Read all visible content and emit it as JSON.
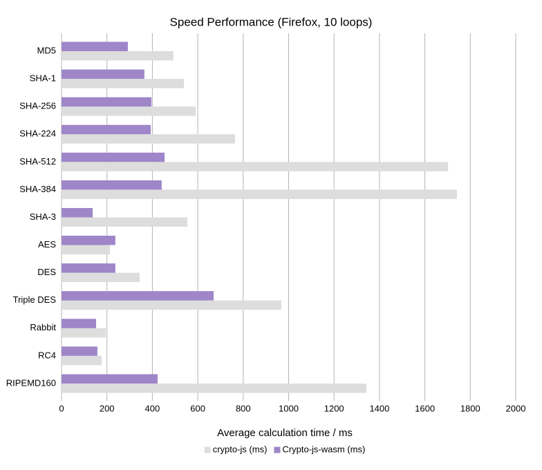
{
  "chart_data": {
    "type": "hbar",
    "title": "Speed Performance (Firefox, 10 loops)",
    "x_label": "Average calculation time / ms",
    "categories": [
      "MD5",
      "SHA-1",
      "SHA-256",
      "SHA-224",
      "SHA-512",
      "SHA-384",
      "SHA-3",
      "AES",
      "DES",
      "Triple DES",
      "Rabbit",
      "RC4",
      "RIPEMD160"
    ],
    "series": [
      {
        "name": "crypto-js (ms)",
        "color": "#dddddd",
        "values": [
          493,
          539,
          591,
          764,
          1702,
          1741,
          554,
          213,
          344,
          968,
          195,
          177,
          1342
        ]
      },
      {
        "name": "Crypto-js-wasm (ms)",
        "color": "#9e86c8",
        "values": [
          292,
          365,
          396,
          393,
          454,
          441,
          137,
          237,
          237,
          670,
          152,
          158,
          423
        ]
      }
    ],
    "xlim": [
      0,
      2000
    ],
    "xticks": [
      0,
      200,
      400,
      600,
      800,
      1000,
      1200,
      1400,
      1600,
      1800,
      2000
    ],
    "grid": true,
    "legend": "bottom"
  }
}
